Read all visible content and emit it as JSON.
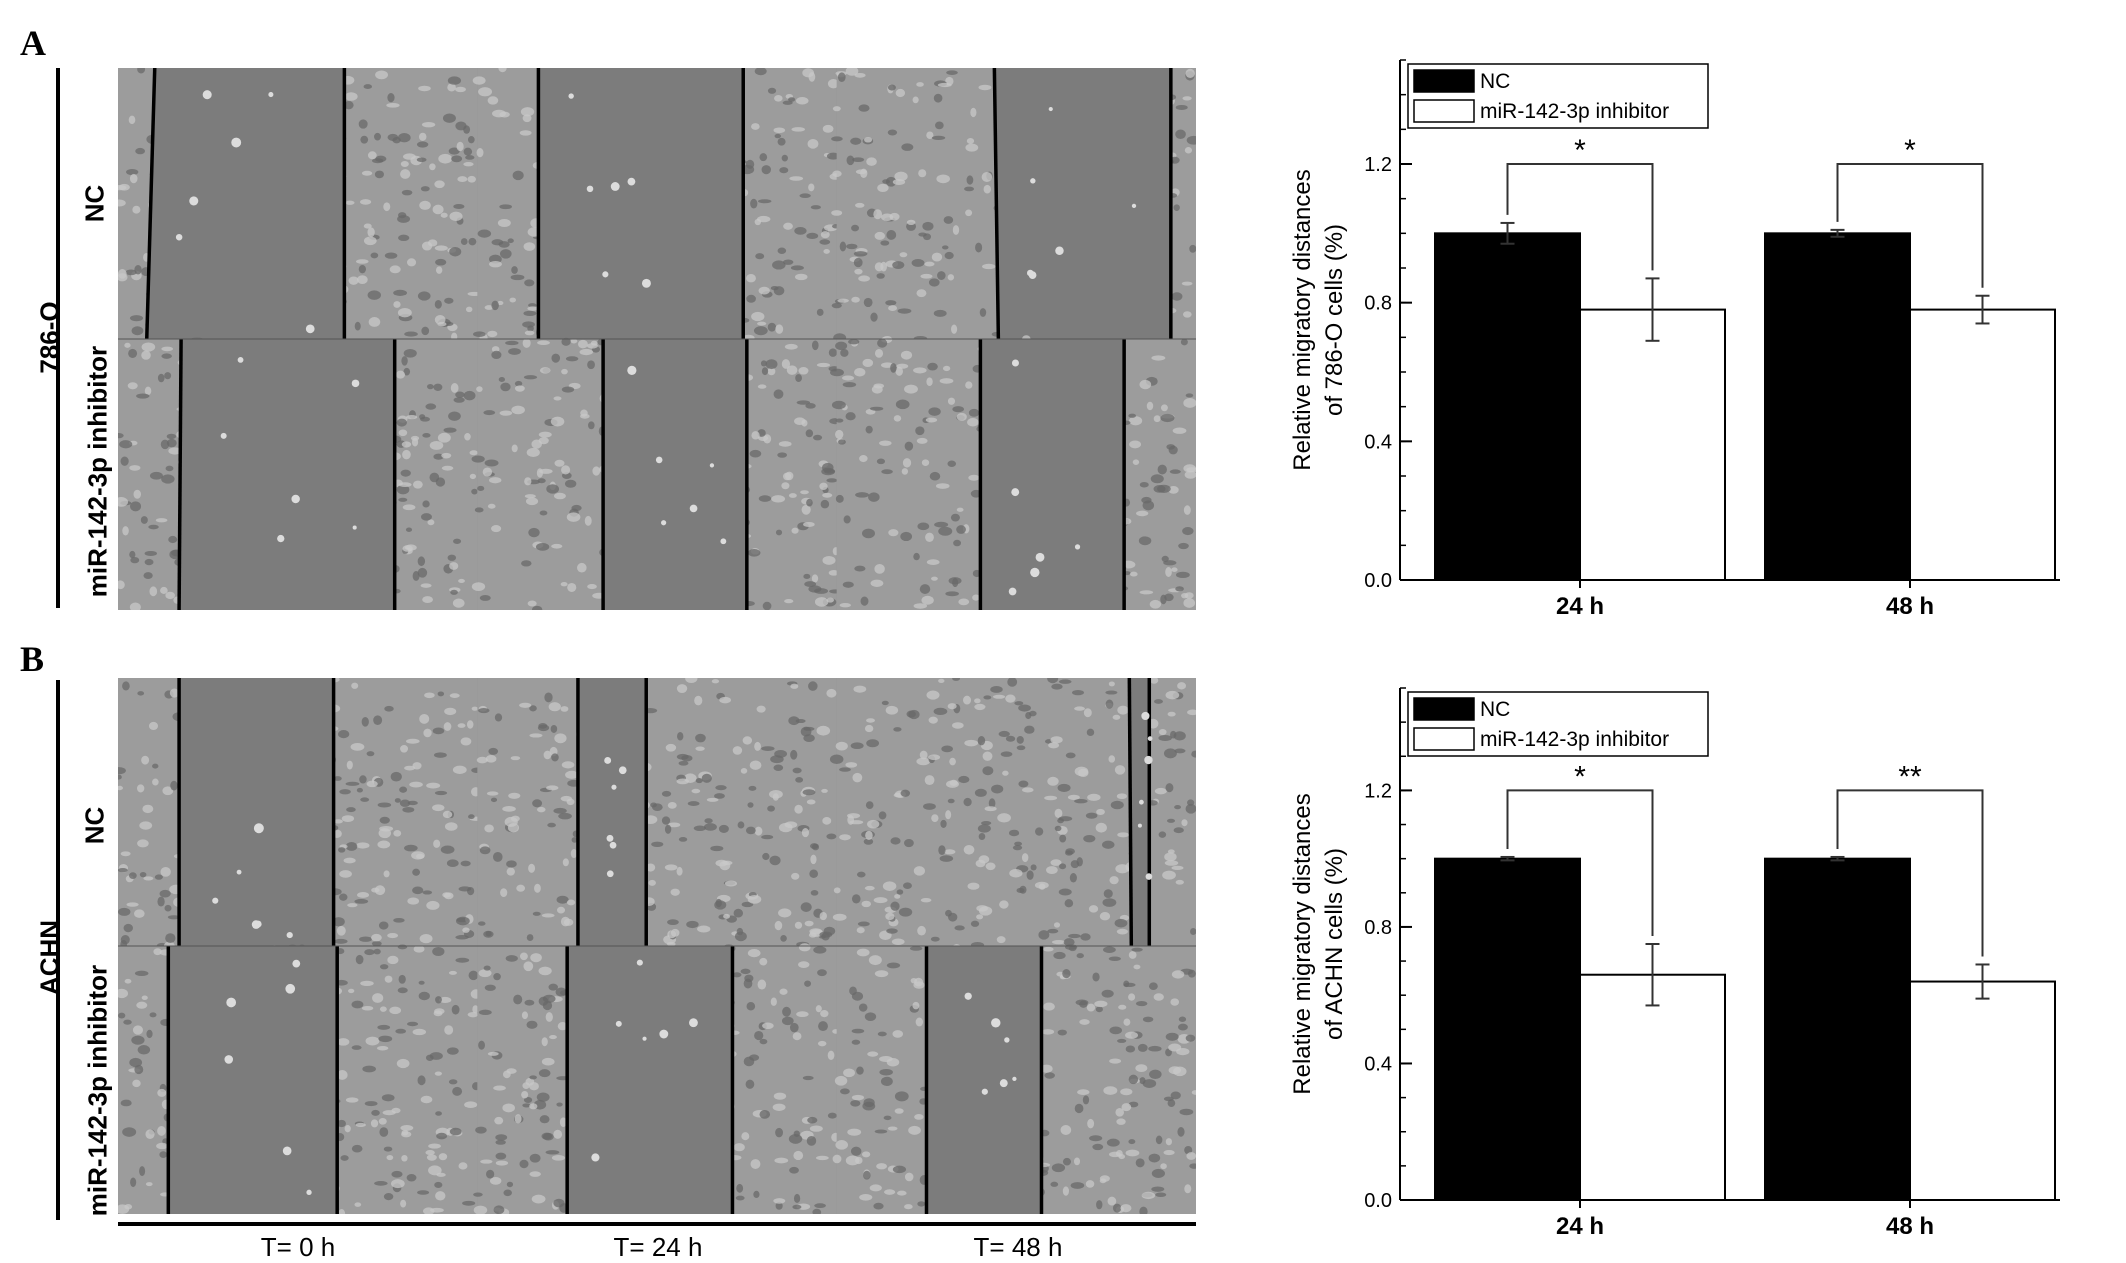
{
  "panels": [
    {
      "letter": "A",
      "cell_line": "786-O",
      "rows": [
        "NC",
        "miR-142-3p inhibitor"
      ]
    },
    {
      "letter": "B",
      "cell_line": "ACHN",
      "rows": [
        "NC",
        "miR-142-3p inhibitor"
      ]
    }
  ],
  "time_labels": [
    "T= 0 h",
    "T= 24 h",
    "T= 48 h"
  ],
  "chart_data": [
    {
      "type": "bar",
      "categories": [
        "24 h",
        "48 h"
      ],
      "series": [
        {
          "name": "NC",
          "values": [
            1.0,
            1.0
          ],
          "errors": [
            0.03,
            0.01
          ],
          "color": "#000000"
        },
        {
          "name": "miR-142-3p inhibitor",
          "values": [
            0.78,
            0.78
          ],
          "errors": [
            0.09,
            0.04
          ],
          "color": "#ffffff"
        }
      ],
      "ylabel_lines": [
        "Relative migratory distances",
        "of 786-O cells (%)"
      ],
      "ylim": [
        0,
        1.5
      ],
      "yticks": [
        0.0,
        0.4,
        0.8,
        1.2
      ],
      "ytick_labels": [
        "0.0",
        "0.4",
        "0.8",
        "1.2"
      ],
      "significance": [
        "*",
        "*"
      ],
      "legend_position": "top-left"
    },
    {
      "type": "bar",
      "categories": [
        "24 h",
        "48 h"
      ],
      "series": [
        {
          "name": "NC",
          "values": [
            1.0,
            1.0
          ],
          "errors": [
            0.005,
            0.005
          ],
          "color": "#000000"
        },
        {
          "name": "miR-142-3p inhibitor",
          "values": [
            0.66,
            0.64
          ],
          "errors": [
            0.09,
            0.05
          ],
          "color": "#ffffff"
        }
      ],
      "ylabel_lines": [
        "Relative migratory distances",
        "of ACHN cells (%)"
      ],
      "ylim": [
        0,
        1.5
      ],
      "yticks": [
        0.0,
        0.4,
        0.8,
        1.2
      ],
      "ytick_labels": [
        "0.0",
        "0.4",
        "0.8",
        "1.2"
      ],
      "significance": [
        "*",
        "**"
      ],
      "legend_position": "top-left"
    }
  ]
}
